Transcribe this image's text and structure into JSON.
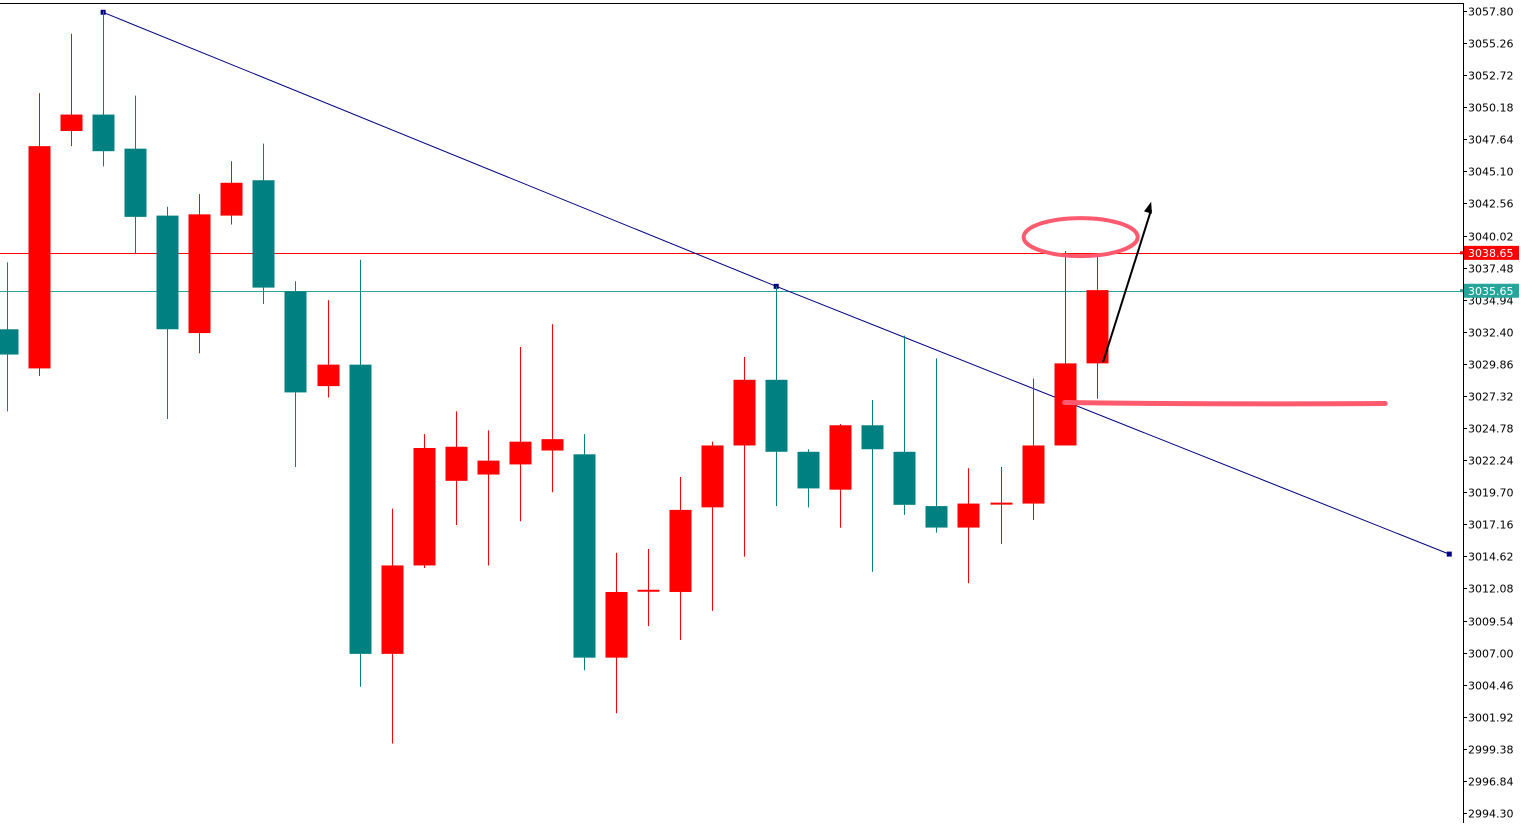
{
  "chart_data": {
    "type": "candlestick",
    "y_axis": {
      "side": "right",
      "range": [
        2994.3,
        3057.8
      ],
      "tick_labels": [
        "3057.80",
        "3055.26",
        "3052.72",
        "3050.18",
        "3047.64",
        "3045.10",
        "3042.56",
        "3040.02",
        "3037.48",
        "3034.94",
        "3032.40",
        "3029.86",
        "3027.32",
        "3024.78",
        "3022.24",
        "3019.70",
        "3017.16",
        "3014.62",
        "3012.08",
        "3009.54",
        "3007.00",
        "3004.46",
        "3001.92",
        "2999.38",
        "2996.84",
        "2994.30"
      ]
    },
    "bull_color": "#ff0000",
    "bear_color": "#008080",
    "candles": [
      {
        "o": 3032.6,
        "h": 3037.9,
        "l": 3026.1,
        "c": 3030.6
      },
      {
        "o": 3029.5,
        "h": 3051.3,
        "l": 3028.9,
        "c": 3047.1
      },
      {
        "o": 3048.3,
        "h": 3056.0,
        "l": 3047.1,
        "c": 3049.6
      },
      {
        "o": 3049.6,
        "h": 3057.8,
        "l": 3045.5,
        "c": 3046.7
      },
      {
        "o": 3046.9,
        "h": 3051.1,
        "l": 3038.6,
        "c": 3041.5
      },
      {
        "o": 3041.6,
        "h": 3042.3,
        "l": 3025.5,
        "c": 3032.6
      },
      {
        "o": 3032.3,
        "h": 3043.3,
        "l": 3030.7,
        "c": 3041.7
      },
      {
        "o": 3041.6,
        "h": 3045.9,
        "l": 3040.9,
        "c": 3044.2
      },
      {
        "o": 3044.4,
        "h": 3047.3,
        "l": 3034.6,
        "c": 3035.9
      },
      {
        "o": 3035.6,
        "h": 3036.4,
        "l": 3021.7,
        "c": 3027.6
      },
      {
        "o": 3028.1,
        "h": 3034.9,
        "l": 3027.2,
        "c": 3029.8
      },
      {
        "o": 3029.8,
        "h": 3038.1,
        "l": 3004.3,
        "c": 3006.9
      },
      {
        "o": 3006.9,
        "h": 3018.4,
        "l": 2999.8,
        "c": 3013.9
      },
      {
        "o": 3013.9,
        "h": 3024.3,
        "l": 3013.7,
        "c": 3023.2
      },
      {
        "o": 3020.6,
        "h": 3026.1,
        "l": 3017.1,
        "c": 3023.3
      },
      {
        "o": 3021.1,
        "h": 3024.6,
        "l": 3013.9,
        "c": 3022.2
      },
      {
        "o": 3021.9,
        "h": 3031.2,
        "l": 3017.4,
        "c": 3023.7
      },
      {
        "o": 3023.0,
        "h": 3033.0,
        "l": 3019.7,
        "c": 3023.9
      },
      {
        "o": 3022.7,
        "h": 3024.3,
        "l": 3005.6,
        "c": 3006.6
      },
      {
        "o": 3006.6,
        "h": 3014.9,
        "l": 3002.2,
        "c": 3011.8
      },
      {
        "o": 3011.8,
        "h": 3015.2,
        "l": 3009.1,
        "c": 3011.9
      },
      {
        "o": 3011.8,
        "h": 3020.9,
        "l": 3008.0,
        "c": 3018.3
      },
      {
        "o": 3018.5,
        "h": 3023.7,
        "l": 3010.3,
        "c": 3023.4
      },
      {
        "o": 3023.4,
        "h": 3030.4,
        "l": 3014.6,
        "c": 3028.6
      },
      {
        "o": 3028.6,
        "h": 3036.0,
        "l": 3018.6,
        "c": 3022.9
      },
      {
        "o": 3022.9,
        "h": 3023.1,
        "l": 3018.5,
        "c": 3020.0
      },
      {
        "o": 3019.9,
        "h": 3025.1,
        "l": 3016.9,
        "c": 3025.0
      },
      {
        "o": 3025.0,
        "h": 3027.0,
        "l": 3013.4,
        "c": 3023.1
      },
      {
        "o": 3022.9,
        "h": 3032.1,
        "l": 3017.9,
        "c": 3018.7
      },
      {
        "o": 3018.6,
        "h": 3030.3,
        "l": 3016.5,
        "c": 3016.9
      },
      {
        "o": 3016.9,
        "h": 3021.6,
        "l": 3012.5,
        "c": 3018.8
      },
      {
        "o": 3018.8,
        "h": 3021.7,
        "l": 3015.6,
        "c": 3018.8
      },
      {
        "o": 3018.8,
        "h": 3028.7,
        "l": 3017.5,
        "c": 3023.4
      },
      {
        "o": 3023.4,
        "h": 3038.8,
        "l": 3023.4,
        "c": 3029.9
      },
      {
        "o": 3029.9,
        "h": 3038.6,
        "l": 3027.1,
        "c": 3035.7
      }
    ],
    "current_price_tags": [
      {
        "label": "3038.65",
        "value": 3038.65,
        "color": "#ff0000"
      },
      {
        "label": "3035.65",
        "value": 3035.65,
        "color": "#26a69a"
      }
    ],
    "trendline": {
      "color": "#000080",
      "points": [
        {
          "bar": 3,
          "price": 3057.7
        },
        {
          "bar": 24,
          "price": 3036.0
        },
        {
          "bar": 45,
          "price": 3014.8
        }
      ]
    },
    "annotations": [
      {
        "type": "ellipse",
        "color": "#ff5a6e",
        "bar": 33.5,
        "price": 3039.9
      },
      {
        "type": "underline",
        "color": "#ff5a6e",
        "bar_from": 33.0,
        "bar_to": 43.0,
        "price": 3026.8
      },
      {
        "type": "arrow",
        "color": "#000000",
        "from": {
          "bar": 34.2,
          "price": 3030.0
        },
        "to": {
          "bar": 35.7,
          "price": 3042.7
        }
      }
    ]
  }
}
